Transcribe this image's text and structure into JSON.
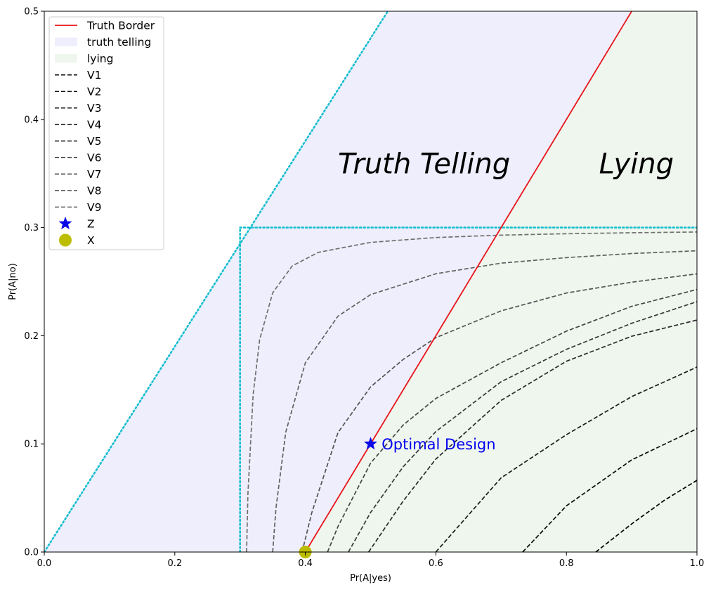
{
  "chart_data": {
    "type": "line",
    "title": "",
    "xlabel": "Pr(A|yes)",
    "ylabel": "Pr(A|no)",
    "xlim": [
      0.0,
      1.0
    ],
    "ylim": [
      0.0,
      0.5
    ],
    "xticks": [
      0.0,
      0.2,
      0.4,
      0.6,
      0.8,
      1.0
    ],
    "yticks": [
      0.0,
      0.1,
      0.2,
      0.3,
      0.4,
      0.5
    ],
    "xtick_labels": [
      "0.0",
      "0.2",
      "0.4",
      "0.6",
      "0.8",
      "1.0"
    ],
    "ytick_labels": [
      "0.0",
      "0.1",
      "0.2",
      "0.3",
      "0.4",
      "0.5"
    ],
    "grid": false,
    "legend_position": "top-left",
    "regions": [
      {
        "name": "truth telling",
        "color": "#eeeefc",
        "polygon": [
          [
            0.0,
            0.0
          ],
          [
            0.5263,
            0.5
          ],
          [
            0.9,
            0.5
          ],
          [
            0.4,
            0.0
          ]
        ]
      },
      {
        "name": "lying",
        "color": "#eff6ee",
        "polygon": [
          [
            0.4,
            0.0
          ],
          [
            0.9,
            0.5
          ],
          [
            1.0,
            0.5
          ],
          [
            1.0,
            0.0
          ]
        ]
      }
    ],
    "truth_border": {
      "name": "Truth Border",
      "color": "#e8141a",
      "points": [
        [
          0.4,
          0.0
        ],
        [
          0.9,
          0.5
        ]
      ]
    },
    "boundary_lines": {
      "color": "#17becf",
      "segments": [
        [
          [
            0.0,
            0.0
          ],
          [
            0.5263,
            0.5
          ]
        ],
        [
          [
            0.3,
            0.0
          ],
          [
            0.3,
            0.3
          ]
        ],
        [
          [
            0.3,
            0.3
          ],
          [
            1.0,
            0.3
          ]
        ]
      ]
    },
    "series": [
      {
        "name": "V1",
        "color": "#000000",
        "x": [
          0.845,
          0.9,
          0.95,
          1.0
        ],
        "y": [
          0.0,
          0.026,
          0.0478,
          0.0663
        ]
      },
      {
        "name": "V2",
        "color": "#0e0e0e",
        "x": [
          0.733,
          0.8,
          0.9,
          1.0
        ],
        "y": [
          0.0,
          0.0427,
          0.0852,
          0.114
        ]
      },
      {
        "name": "V3",
        "color": "#1c1c1c",
        "x": [
          0.6,
          0.7,
          0.8,
          0.9,
          1.0
        ],
        "y": [
          0.0,
          0.0686,
          0.1085,
          0.1437,
          0.171
        ]
      },
      {
        "name": "V4",
        "color": "#2a2a2a",
        "x": [
          0.497,
          0.55,
          0.6,
          0.7,
          0.8,
          0.9,
          1.0
        ],
        "y": [
          0.0,
          0.0472,
          0.086,
          0.1402,
          0.1764,
          0.1995,
          0.2145
        ]
      },
      {
        "name": "V5",
        "color": "#383838",
        "x": [
          0.466,
          0.5,
          0.55,
          0.6,
          0.7,
          0.8,
          0.9,
          1.0
        ],
        "y": [
          0.0,
          0.0366,
          0.0789,
          0.1114,
          0.1575,
          0.1874,
          0.2115,
          0.2315
        ]
      },
      {
        "name": "V6",
        "color": "#464646",
        "x": [
          0.434,
          0.45,
          0.5,
          0.55,
          0.6,
          0.7,
          0.8,
          0.9,
          1.0
        ],
        "y": [
          0.0,
          0.0236,
          0.0822,
          0.1175,
          0.142,
          0.175,
          0.2042,
          0.2272,
          0.2428
        ]
      },
      {
        "name": "V7",
        "color": "#545454",
        "x": [
          0.395,
          0.41,
          0.45,
          0.5,
          0.55,
          0.6,
          0.7,
          0.8,
          0.9,
          1.0
        ],
        "y": [
          0.0,
          0.0366,
          0.1104,
          0.1527,
          0.1781,
          0.1982,
          0.223,
          0.2395,
          0.2495,
          0.2572
        ]
      },
      {
        "name": "V8",
        "color": "#626262",
        "x": [
          0.35,
          0.355,
          0.37,
          0.4,
          0.45,
          0.5,
          0.6,
          0.7,
          0.8,
          0.9,
          1.0
        ],
        "y": [
          0.0,
          0.0405,
          0.1109,
          0.1749,
          0.2181,
          0.238,
          0.2573,
          0.2671,
          0.2722,
          0.276,
          0.2785
        ]
      },
      {
        "name": "V9",
        "color": "#707070",
        "x": [
          0.31,
          0.312,
          0.32,
          0.33,
          0.35,
          0.38,
          0.42,
          0.5,
          0.6,
          0.7,
          0.8,
          0.9,
          1.0
        ],
        "y": [
          0.0,
          0.0532,
          0.1453,
          0.1964,
          0.2397,
          0.2646,
          0.2771,
          0.2863,
          0.2908,
          0.293,
          0.2943,
          0.2952,
          0.2959
        ]
      }
    ],
    "points": [
      {
        "name": "Z",
        "marker": "star",
        "color": "#0a0ae6",
        "x": 0.5,
        "y": 0.1
      },
      {
        "name": "X",
        "marker": "circle",
        "color": "#bdbd00",
        "x": 0.4,
        "y": 0.0
      }
    ],
    "legend": [
      "Truth Border",
      "truth telling",
      "lying",
      "V1",
      "V2",
      "V3",
      "V4",
      "V5",
      "V6",
      "V7",
      "V8",
      "V9",
      "Z",
      "X"
    ],
    "annotations": [
      {
        "text": "Truth Telling",
        "x": 0.45,
        "y": 0.35,
        "style": "region"
      },
      {
        "text": "Lying",
        "x": 0.85,
        "y": 0.35,
        "style": "region"
      },
      {
        "text": "Optimal Design",
        "x": 0.517,
        "y": 0.1,
        "style": "point"
      }
    ]
  }
}
